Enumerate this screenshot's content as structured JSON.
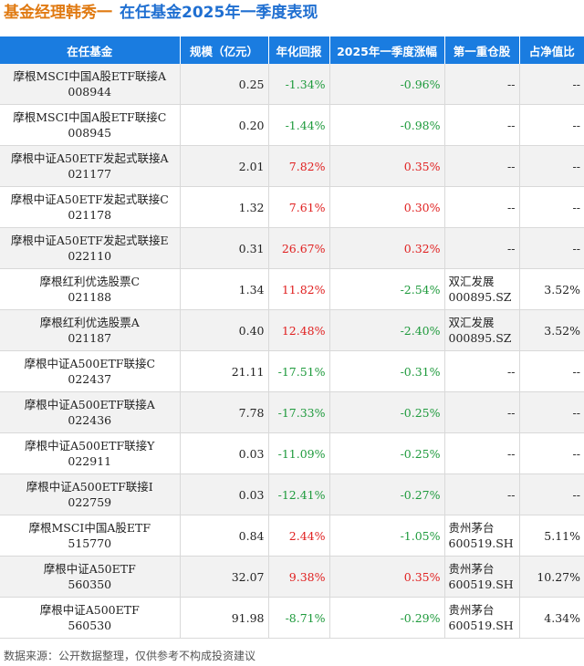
{
  "title": {
    "part1": "基金经理韩秀一",
    "part2": "在任基金2025年一季度表现"
  },
  "colors": {
    "header_bg": "#1a7ce0",
    "title_orange": "#e07a12",
    "title_blue": "#1f6fd1",
    "positive": "#e02020",
    "negative": "#1e9a3c"
  },
  "headers": [
    "在任基金",
    "规模（亿元）",
    "年化回报",
    "2025年一季度涨幅",
    "第一重仓股",
    "占净值比"
  ],
  "rows": [
    {
      "name": "摩根MSCI中国A股ETF联接A",
      "code": "008944",
      "scale": "0.25",
      "annual": "-1.34%",
      "q1": "-0.96%",
      "stock": "--",
      "stock_code": "",
      "ratio": "--"
    },
    {
      "name": "摩根MSCI中国A股ETF联接C",
      "code": "008945",
      "scale": "0.20",
      "annual": "-1.44%",
      "q1": "-0.98%",
      "stock": "--",
      "stock_code": "",
      "ratio": "--"
    },
    {
      "name": "摩根中证A50ETF发起式联接A",
      "code": "021177",
      "scale": "2.01",
      "annual": "7.82%",
      "q1": "0.35%",
      "stock": "--",
      "stock_code": "",
      "ratio": "--"
    },
    {
      "name": "摩根中证A50ETF发起式联接C",
      "code": "021178",
      "scale": "1.32",
      "annual": "7.61%",
      "q1": "0.30%",
      "stock": "--",
      "stock_code": "",
      "ratio": "--"
    },
    {
      "name": "摩根中证A50ETF发起式联接E",
      "code": "022110",
      "scale": "0.31",
      "annual": "26.67%",
      "q1": "0.32%",
      "stock": "--",
      "stock_code": "",
      "ratio": "--"
    },
    {
      "name": "摩根红利优选股票C",
      "code": "021188",
      "scale": "1.34",
      "annual": "11.82%",
      "q1": "-2.54%",
      "stock": "双汇发展",
      "stock_code": "000895.SZ",
      "ratio": "3.52%"
    },
    {
      "name": "摩根红利优选股票A",
      "code": "021187",
      "scale": "0.40",
      "annual": "12.48%",
      "q1": "-2.40%",
      "stock": "双汇发展",
      "stock_code": "000895.SZ",
      "ratio": "3.52%"
    },
    {
      "name": "摩根中证A500ETF联接C",
      "code": "022437",
      "scale": "21.11",
      "annual": "-17.51%",
      "q1": "-0.31%",
      "stock": "--",
      "stock_code": "",
      "ratio": "--"
    },
    {
      "name": "摩根中证A500ETF联接A",
      "code": "022436",
      "scale": "7.78",
      "annual": "-17.33%",
      "q1": "-0.25%",
      "stock": "--",
      "stock_code": "",
      "ratio": "--"
    },
    {
      "name": "摩根中证A500ETF联接Y",
      "code": "022911",
      "scale": "0.03",
      "annual": "-11.09%",
      "q1": "-0.25%",
      "stock": "--",
      "stock_code": "",
      "ratio": "--"
    },
    {
      "name": "摩根中证A500ETF联接I",
      "code": "022759",
      "scale": "0.03",
      "annual": "-12.41%",
      "q1": "-0.27%",
      "stock": "--",
      "stock_code": "",
      "ratio": "--"
    },
    {
      "name": "摩根MSCI中国A股ETF",
      "code": "515770",
      "scale": "0.84",
      "annual": "2.44%",
      "q1": "-1.05%",
      "stock": "贵州茅台",
      "stock_code": "600519.SH",
      "ratio": "5.11%"
    },
    {
      "name": "摩根中证A50ETF",
      "code": "560350",
      "scale": "32.07",
      "annual": "9.38%",
      "q1": "0.35%",
      "stock": "贵州茅台",
      "stock_code": "600519.SH",
      "ratio": "10.27%"
    },
    {
      "name": "摩根中证A500ETF",
      "code": "560530",
      "scale": "91.98",
      "annual": "-8.71%",
      "q1": "-0.29%",
      "stock": "贵州茅台",
      "stock_code": "600519.SH",
      "ratio": "4.34%"
    }
  ],
  "source": "数据来源：公开数据整理，仅供参考不构成投资建议"
}
